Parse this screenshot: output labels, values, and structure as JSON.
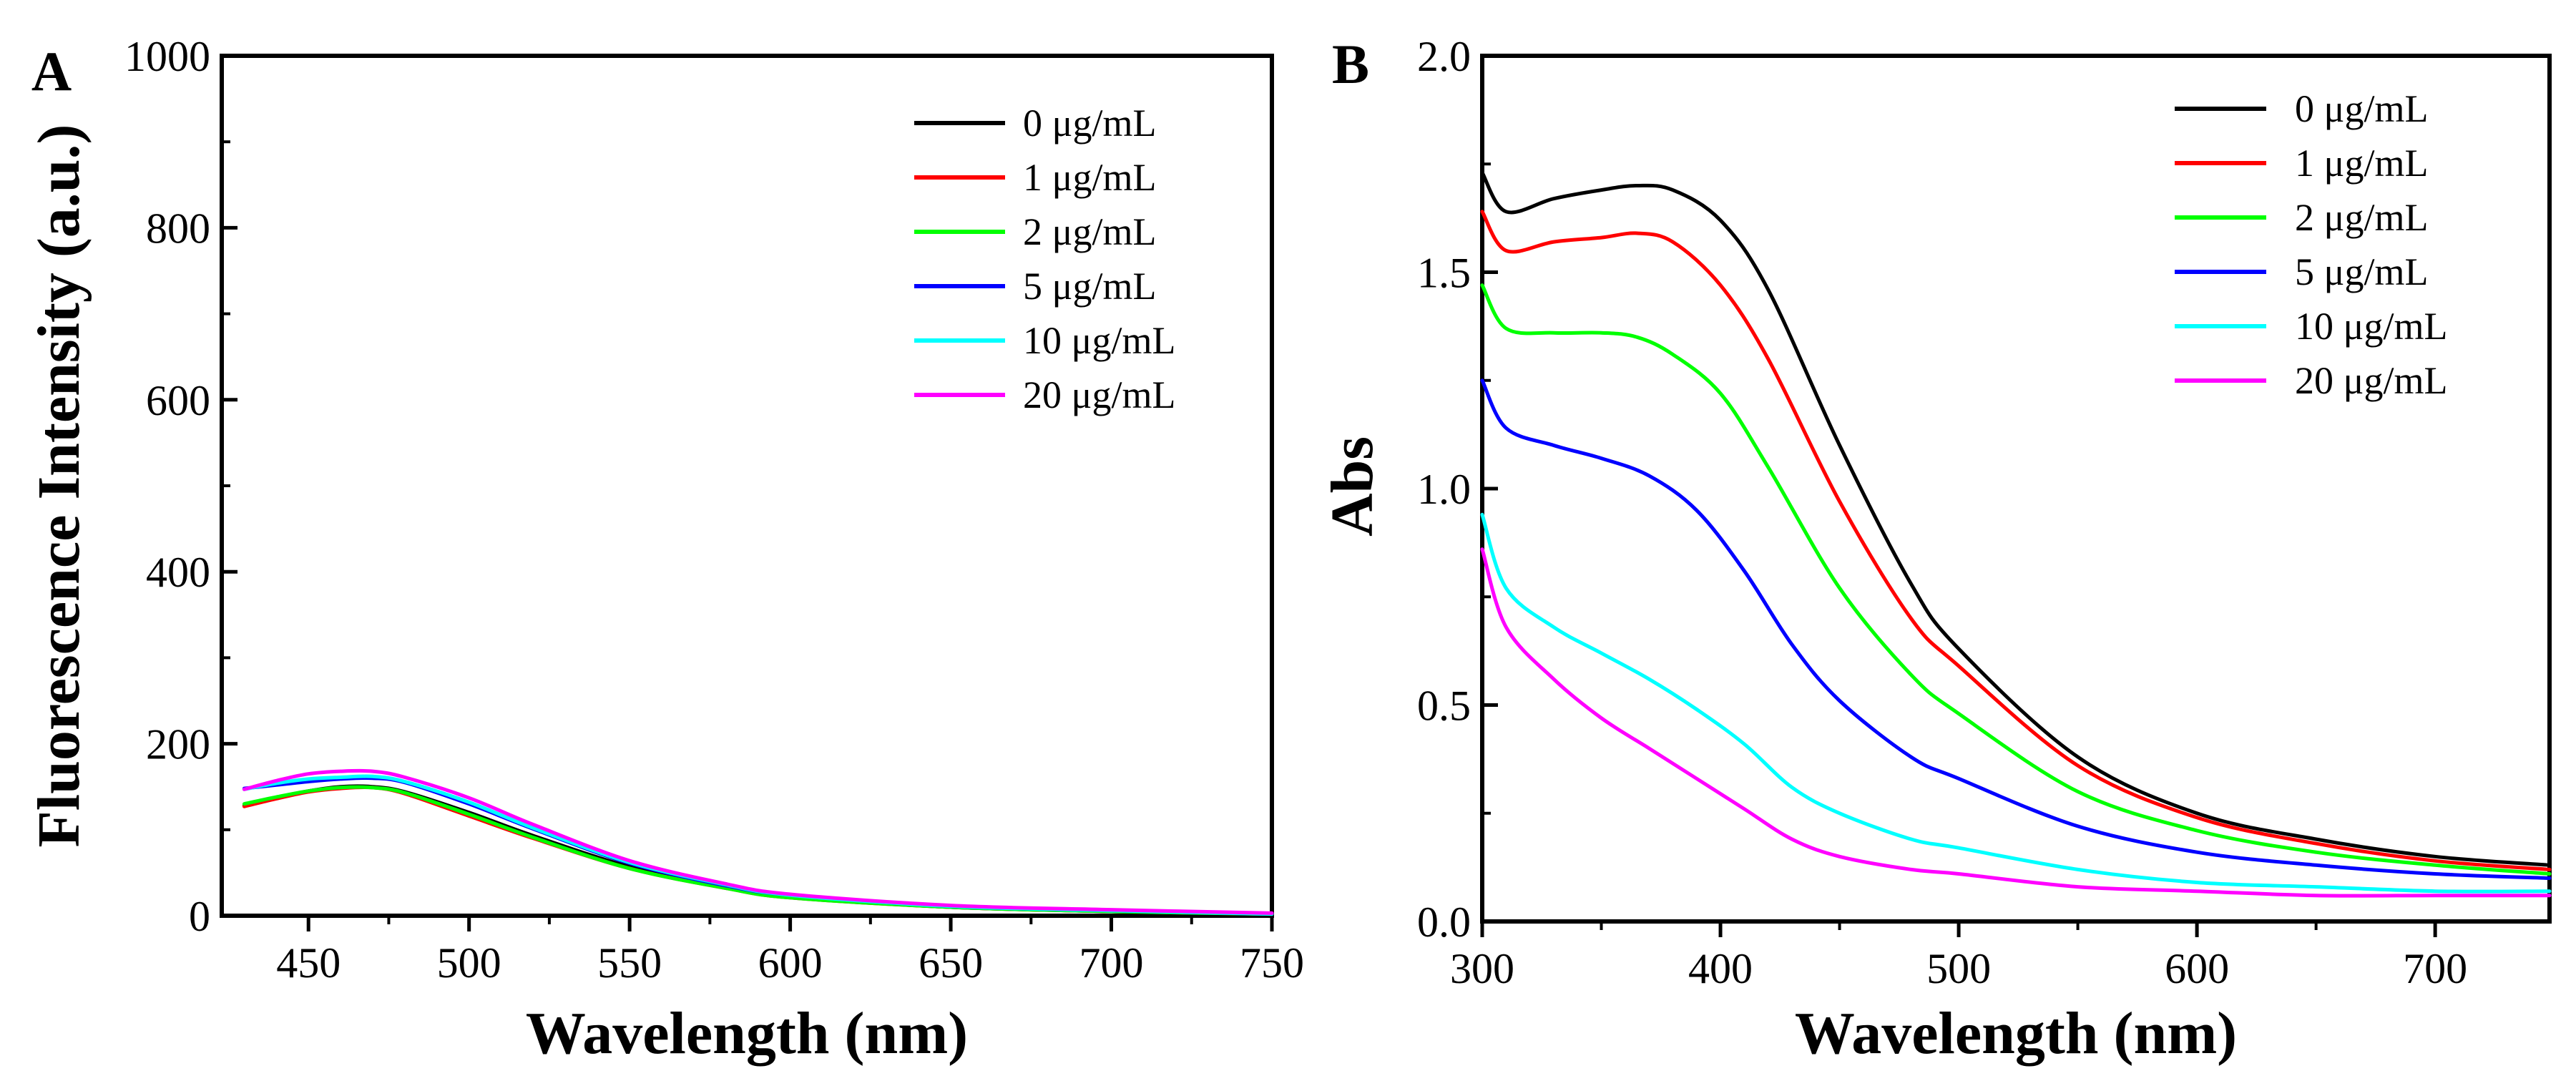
{
  "chart_data": [
    {
      "panel": "A",
      "type": "line",
      "xlabel": "Wavelength (nm)",
      "ylabel": "Fluorescence Intensity (a.u.)",
      "xlim": [
        423,
        750
      ],
      "ylim": [
        0,
        1000
      ],
      "xticks": [
        450,
        500,
        550,
        600,
        650,
        700,
        750
      ],
      "yticks": [
        0,
        200,
        400,
        600,
        800,
        1000
      ],
      "legend": "top-right",
      "series": [
        {
          "name": "0 μg/mL",
          "color": "#000000",
          "x": [
            430,
            440,
            450,
            460,
            470,
            480,
            500,
            520,
            550,
            580,
            600,
            650,
            700,
            750
          ],
          "y": [
            128,
            137,
            145,
            150,
            150,
            144,
            120,
            93,
            57,
            33,
            22,
            10,
            5,
            2
          ]
        },
        {
          "name": "1 μg/mL",
          "color": "#ff0000",
          "x": [
            430,
            440,
            450,
            460,
            470,
            480,
            500,
            520,
            550,
            580,
            600,
            650,
            700,
            750
          ],
          "y": [
            127,
            136,
            144,
            148,
            149,
            142,
            116,
            90,
            55,
            32,
            21,
            10,
            5,
            2
          ]
        },
        {
          "name": "2 μg/mL",
          "color": "#00ff00",
          "x": [
            430,
            440,
            450,
            460,
            470,
            480,
            500,
            520,
            550,
            580,
            600,
            650,
            700,
            750
          ],
          "y": [
            130,
            138,
            145,
            149,
            149,
            143,
            118,
            91,
            55,
            32,
            21,
            10,
            5,
            2
          ]
        },
        {
          "name": "5 μg/mL",
          "color": "#0000ff",
          "x": [
            430,
            440,
            450,
            460,
            470,
            480,
            500,
            520,
            550,
            580,
            600,
            650,
            700,
            750
          ],
          "y": [
            148,
            152,
            156,
            159,
            160,
            155,
            130,
            101,
            61,
            35,
            24,
            11,
            6,
            2
          ]
        },
        {
          "name": "10 μg/mL",
          "color": "#00ffff",
          "x": [
            430,
            440,
            450,
            460,
            470,
            480,
            500,
            520,
            550,
            580,
            600,
            650,
            700,
            750
          ],
          "y": [
            147,
            154,
            159,
            161,
            162,
            156,
            132,
            102,
            62,
            36,
            24,
            11,
            6,
            2
          ]
        },
        {
          "name": "20 μg/mL",
          "color": "#ff00ff",
          "x": [
            430,
            440,
            450,
            460,
            470,
            480,
            500,
            520,
            550,
            580,
            600,
            650,
            700,
            750
          ],
          "y": [
            147,
            157,
            165,
            168,
            168,
            161,
            137,
            106,
            64,
            37,
            25,
            12,
            7,
            3
          ]
        }
      ]
    },
    {
      "panel": "B",
      "type": "line",
      "xlabel": "Wavelength (nm)",
      "ylabel": "Abs",
      "xlim": [
        300,
        748
      ],
      "ylim": [
        0,
        2.0
      ],
      "xticks": [
        300,
        400,
        500,
        600,
        700
      ],
      "yticks": [
        0.0,
        0.5,
        1.0,
        1.5,
        2.0
      ],
      "ytick_labels": [
        "0.0",
        "0.5",
        "1.0",
        "1.5",
        "2.0"
      ],
      "legend": "top-right",
      "series": [
        {
          "name": "0 μg/mL",
          "color": "#000000",
          "x": [
            300,
            310,
            330,
            350,
            365,
            380,
            400,
            420,
            450,
            480,
            500,
            550,
            600,
            650,
            700,
            748
          ],
          "y": [
            1.73,
            1.64,
            1.67,
            1.69,
            1.7,
            1.69,
            1.62,
            1.46,
            1.1,
            0.78,
            0.63,
            0.38,
            0.25,
            0.19,
            0.15,
            0.13
          ]
        },
        {
          "name": "1 μg/mL",
          "color": "#ff0000",
          "x": [
            300,
            310,
            330,
            350,
            365,
            380,
            400,
            420,
            450,
            480,
            500,
            550,
            600,
            650,
            700,
            748
          ],
          "y": [
            1.64,
            1.55,
            1.57,
            1.58,
            1.59,
            1.57,
            1.47,
            1.3,
            0.97,
            0.7,
            0.59,
            0.36,
            0.24,
            0.18,
            0.14,
            0.12
          ]
        },
        {
          "name": "2 μg/mL",
          "color": "#00ff00",
          "x": [
            300,
            310,
            330,
            350,
            365,
            380,
            400,
            420,
            450,
            480,
            500,
            550,
            600,
            650,
            700,
            748
          ],
          "y": [
            1.47,
            1.37,
            1.36,
            1.36,
            1.35,
            1.31,
            1.22,
            1.05,
            0.77,
            0.57,
            0.48,
            0.3,
            0.21,
            0.16,
            0.13,
            0.11
          ]
        },
        {
          "name": "5 μg/mL",
          "color": "#0000ff",
          "x": [
            300,
            310,
            330,
            350,
            370,
            390,
            410,
            430,
            450,
            480,
            500,
            550,
            600,
            650,
            700,
            748
          ],
          "y": [
            1.25,
            1.14,
            1.1,
            1.07,
            1.03,
            0.95,
            0.81,
            0.64,
            0.51,
            0.38,
            0.33,
            0.22,
            0.16,
            0.13,
            0.11,
            0.1
          ]
        },
        {
          "name": "10 μg/mL",
          "color": "#00ffff",
          "x": [
            300,
            310,
            330,
            350,
            370,
            390,
            410,
            430,
            450,
            480,
            500,
            550,
            600,
            650,
            700,
            748
          ],
          "y": [
            0.94,
            0.77,
            0.68,
            0.62,
            0.56,
            0.49,
            0.41,
            0.31,
            0.25,
            0.19,
            0.17,
            0.12,
            0.09,
            0.08,
            0.07,
            0.07
          ]
        },
        {
          "name": "20 μg/mL",
          "color": "#ff00ff",
          "x": [
            300,
            310,
            330,
            350,
            370,
            390,
            410,
            430,
            450,
            480,
            500,
            550,
            600,
            650,
            700,
            748
          ],
          "y": [
            0.86,
            0.68,
            0.56,
            0.47,
            0.4,
            0.33,
            0.26,
            0.19,
            0.15,
            0.12,
            0.11,
            0.08,
            0.07,
            0.06,
            0.06,
            0.06
          ]
        }
      ]
    }
  ]
}
